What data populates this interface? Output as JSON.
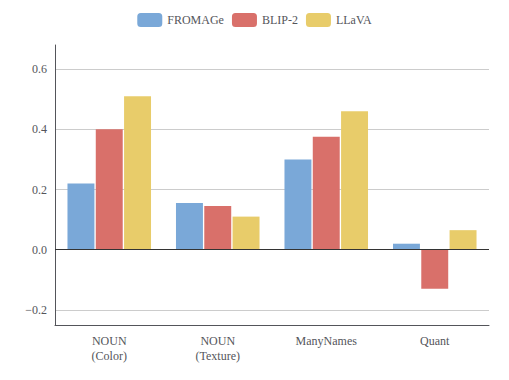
{
  "chart_data": {
    "type": "bar",
    "categories": [
      "NOUN\n(Color)",
      "NOUN\n(Texture)",
      "ManyNames",
      "Quant"
    ],
    "series": [
      {
        "name": "FROMAGe",
        "color": "#7aA8D8",
        "values": [
          0.22,
          0.155,
          0.3,
          0.02
        ]
      },
      {
        "name": "BLIP-2",
        "color": "#D9706A",
        "values": [
          0.4,
          0.145,
          0.375,
          -0.13
        ]
      },
      {
        "name": "LLaVA",
        "color": "#E8CC6A",
        "values": [
          0.51,
          0.11,
          0.46,
          0.065
        ]
      }
    ],
    "ylim": [
      -0.25,
      0.68
    ],
    "yticks": [
      {
        "value": -0.2,
        "label": "−0.2"
      },
      {
        "value": 0,
        "label": "0.0"
      },
      0.2,
      0.4,
      0.6
    ],
    "grid": true,
    "legend": "upper center"
  }
}
